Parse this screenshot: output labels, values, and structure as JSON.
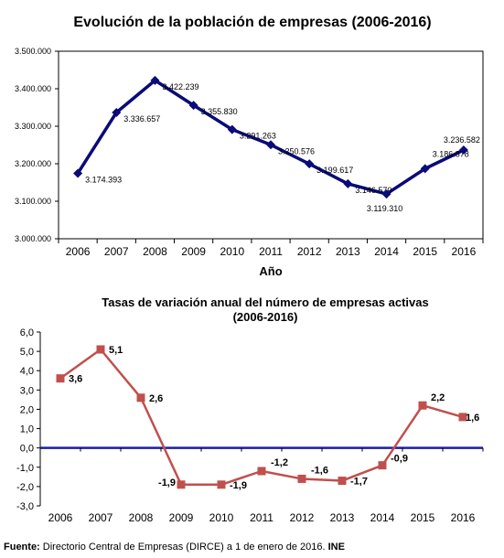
{
  "chart_data": [
    {
      "type": "line",
      "title": "Evolución de la población de empresas (2006-2016)",
      "xlabel": "Año",
      "ylabel": "",
      "categories": [
        "2006",
        "2007",
        "2008",
        "2009",
        "2010",
        "2011",
        "2012",
        "2013",
        "2014",
        "2015",
        "2016"
      ],
      "values": [
        3174393,
        3336657,
        3422239,
        3355830,
        3291263,
        3250576,
        3199617,
        3146570,
        3119310,
        3186878,
        3236582
      ],
      "data_labels": [
        "3.174.393",
        "3.336.657",
        "3.422.239",
        "3.355.830",
        "3.291.263",
        "3.250.576",
        "3.199.617",
        "3.146.570",
        "3.119.310",
        "3.186.878",
        "3.236.582"
      ],
      "ylim": [
        3000000,
        3500000
      ],
      "yticks": [
        3000000,
        3100000,
        3200000,
        3300000,
        3400000,
        3500000
      ],
      "ytick_labels": [
        "3.000.000",
        "3.100.000",
        "3.200.000",
        "3.300.000",
        "3.400.000",
        "3.500.000"
      ],
      "color": "#0a0a78",
      "marker": "diamond",
      "grid": false,
      "legend": "none"
    },
    {
      "type": "line",
      "title": "Tasas de variación anual del número de empresas activas",
      "subtitle": "(2006-2016)",
      "xlabel": "",
      "ylabel": "",
      "categories": [
        "2006",
        "2007",
        "2008",
        "2009",
        "2010",
        "2011",
        "2012",
        "2013",
        "2014",
        "2015",
        "2016"
      ],
      "values": [
        3.6,
        5.1,
        2.6,
        -1.9,
        -1.9,
        -1.2,
        -1.6,
        -1.7,
        -0.9,
        2.2,
        1.6
      ],
      "data_labels": [
        "3,6",
        "5,1",
        "2,6",
        "-1,9",
        "-1,9",
        "-1,2",
        "-1,6",
        "-1,7",
        "-0,9",
        "2,2",
        "1,6"
      ],
      "ylim": [
        -3,
        6
      ],
      "yticks": [
        -3,
        -2,
        -1,
        0,
        1,
        2,
        3,
        4,
        5,
        6
      ],
      "ytick_labels": [
        "-3,0",
        "-2,0",
        "-1,0",
        "0,0",
        "1,0",
        "2,0",
        "3,0",
        "4,0",
        "5,0",
        "6,0"
      ],
      "color": "#c0504d",
      "zero_line_color": "#1e1ea0",
      "marker": "square",
      "grid": false,
      "legend": "none"
    }
  ],
  "source": {
    "label": "Fuente:",
    "text": " Directorio Central de Empresas (DIRCE) a 1 de enero de 2016. ",
    "org": "INE"
  }
}
